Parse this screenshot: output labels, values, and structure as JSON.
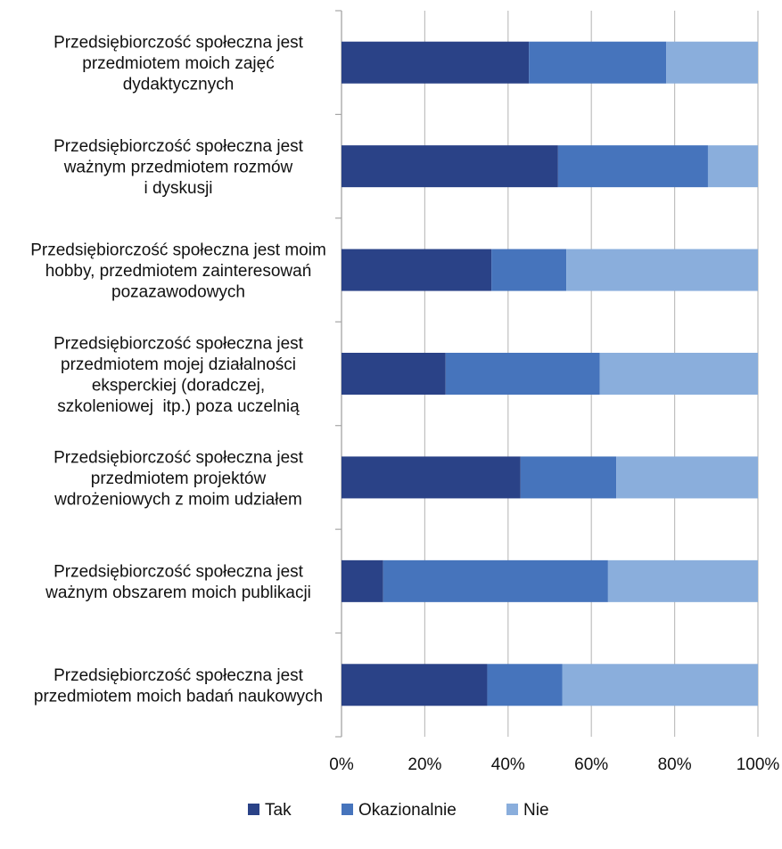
{
  "chart_data": {
    "type": "bar",
    "orientation": "horizontal",
    "stacked": "percent",
    "categories": [
      [
        "Przedsiębiorczość społeczna jest",
        "przedmiotem moich zajęć",
        "dydaktycznych"
      ],
      [
        "Przedsiębiorczość społeczna jest",
        "ważnym przedmiotem rozmów",
        "i dyskusji"
      ],
      [
        "Przedsiębiorczość społeczna jest moim",
        "hobby, przedmiotem zainteresowań",
        "pozazawodowych"
      ],
      [
        "Przedsiębiorczość społeczna jest",
        "przedmiotem mojej działalności",
        "eksperckiej (doradczej,",
        "szkoleniowej  itp.) poza uczelnią"
      ],
      [
        "Przedsiębiorczość społeczna jest",
        "przedmiotem projektów",
        "wdrożeniowych z moim udziałem"
      ],
      [
        "Przedsiębiorczość społeczna jest",
        "ważnym obszarem moich publikacji"
      ],
      [
        "Przedsiębiorczość społeczna jest",
        "przedmiotem moich badań naukowych"
      ]
    ],
    "series": [
      {
        "name": "Tak",
        "color": "#2A4287",
        "values": [
          45,
          52,
          36,
          25,
          43,
          10,
          35
        ]
      },
      {
        "name": "Okazionalnie",
        "color": "#4674BC",
        "values": [
          33,
          36,
          18,
          37,
          23,
          54,
          18
        ]
      },
      {
        "name": "Nie",
        "color": "#8AAEDC",
        "values": [
          22,
          12,
          46,
          38,
          34,
          36,
          47
        ]
      }
    ],
    "x_ticks": [
      "0%",
      "20%",
      "40%",
      "60%",
      "80%",
      "100%"
    ],
    "xlim": [
      0,
      100
    ],
    "grid": true,
    "legend": "bottom",
    "title": "",
    "xlabel": "",
    "ylabel": ""
  }
}
